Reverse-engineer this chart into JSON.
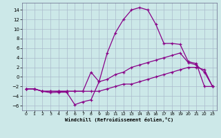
{
  "xlabel": "Windchill (Refroidissement éolien,°C)",
  "bg_color": "#cce8e8",
  "grid_color": "#aabbcc",
  "line_color": "#880088",
  "x_ticks": [
    0,
    1,
    2,
    3,
    4,
    5,
    6,
    7,
    8,
    9,
    10,
    11,
    12,
    13,
    14,
    15,
    16,
    17,
    18,
    19,
    20,
    21,
    22,
    23
  ],
  "y_ticks": [
    -6,
    -4,
    -2,
    0,
    2,
    4,
    6,
    8,
    10,
    12,
    14
  ],
  "ylim": [
    -7,
    15.5
  ],
  "xlim": [
    -0.5,
    23.5
  ],
  "line1_x": [
    0,
    1,
    2,
    3,
    4,
    5,
    6,
    7,
    8,
    9,
    10,
    11,
    12,
    13,
    14,
    15,
    16,
    17,
    18,
    19,
    20,
    21,
    22,
    23
  ],
  "line1_y": [
    -2.5,
    -2.5,
    -3,
    -3.3,
    -3.2,
    -3.2,
    -5.8,
    -5.2,
    -4.8,
    -1,
    5,
    9.2,
    12,
    14,
    14.5,
    14,
    11,
    7,
    7,
    6.8,
    3.2,
    2.8,
    -2,
    -2
  ],
  "line2_x": [
    0,
    1,
    2,
    3,
    4,
    5,
    6,
    7,
    8,
    9,
    10,
    11,
    12,
    13,
    14,
    15,
    16,
    17,
    18,
    19,
    20,
    21,
    22,
    23
  ],
  "line2_y": [
    -2.5,
    -2.5,
    -3,
    -3,
    -3,
    -3,
    -3,
    -3,
    1,
    -1,
    -0.5,
    0.5,
    1,
    2,
    2.5,
    3,
    3.5,
    4,
    4.5,
    5,
    3,
    2.5,
    1,
    -2
  ],
  "line3_x": [
    0,
    1,
    2,
    3,
    4,
    5,
    6,
    7,
    8,
    9,
    10,
    11,
    12,
    13,
    14,
    15,
    16,
    17,
    18,
    19,
    20,
    21,
    22,
    23
  ],
  "line3_y": [
    -2.5,
    -2.5,
    -3,
    -3,
    -3,
    -3,
    -3,
    -3,
    -3,
    -3,
    -2.5,
    -2,
    -1.5,
    -1.5,
    -1,
    -0.5,
    0,
    0.5,
    1,
    1.5,
    2,
    2,
    1.5,
    -2
  ]
}
